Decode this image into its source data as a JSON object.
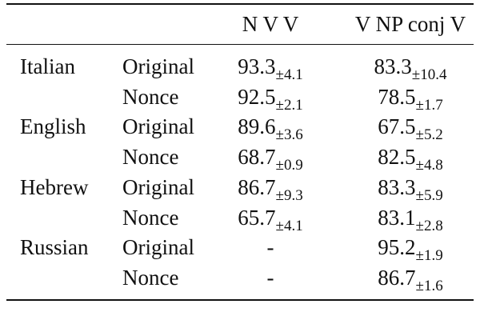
{
  "table": {
    "header": [
      "N V V",
      "V NP conj V"
    ],
    "groups": [
      {
        "language": "Italian",
        "rows": [
          {
            "condition": "Original",
            "cells": [
              {
                "value": "93.3",
                "sd": "±4.1"
              },
              {
                "value": "83.3",
                "sd": "±10.4"
              }
            ]
          },
          {
            "condition": "Nonce",
            "cells": [
              {
                "value": "92.5",
                "sd": "±2.1"
              },
              {
                "value": "78.5",
                "sd": "±1.7"
              }
            ]
          }
        ]
      },
      {
        "language": "English",
        "rows": [
          {
            "condition": "Original",
            "cells": [
              {
                "value": "89.6",
                "sd": "±3.6"
              },
              {
                "value": "67.5",
                "sd": "±5.2"
              }
            ]
          },
          {
            "condition": "Nonce",
            "cells": [
              {
                "value": "68.7",
                "sd": "±0.9"
              },
              {
                "value": "82.5",
                "sd": "±4.8"
              }
            ]
          }
        ]
      },
      {
        "language": "Hebrew",
        "rows": [
          {
            "condition": "Original",
            "cells": [
              {
                "value": "86.7",
                "sd": "±9.3"
              },
              {
                "value": "83.3",
                "sd": "±5.9"
              }
            ]
          },
          {
            "condition": "Nonce",
            "cells": [
              {
                "value": "65.7",
                "sd": "±4.1"
              },
              {
                "value": "83.1",
                "sd": "±2.8"
              }
            ]
          }
        ]
      },
      {
        "language": "Russian",
        "rows": [
          {
            "condition": "Original",
            "cells": [
              {
                "value": "-"
              },
              {
                "value": "95.2",
                "sd": "±1.9"
              }
            ]
          },
          {
            "condition": "Nonce",
            "cells": [
              {
                "value": "-"
              },
              {
                "value": "86.7",
                "sd": "±1.6"
              }
            ]
          }
        ]
      }
    ]
  }
}
